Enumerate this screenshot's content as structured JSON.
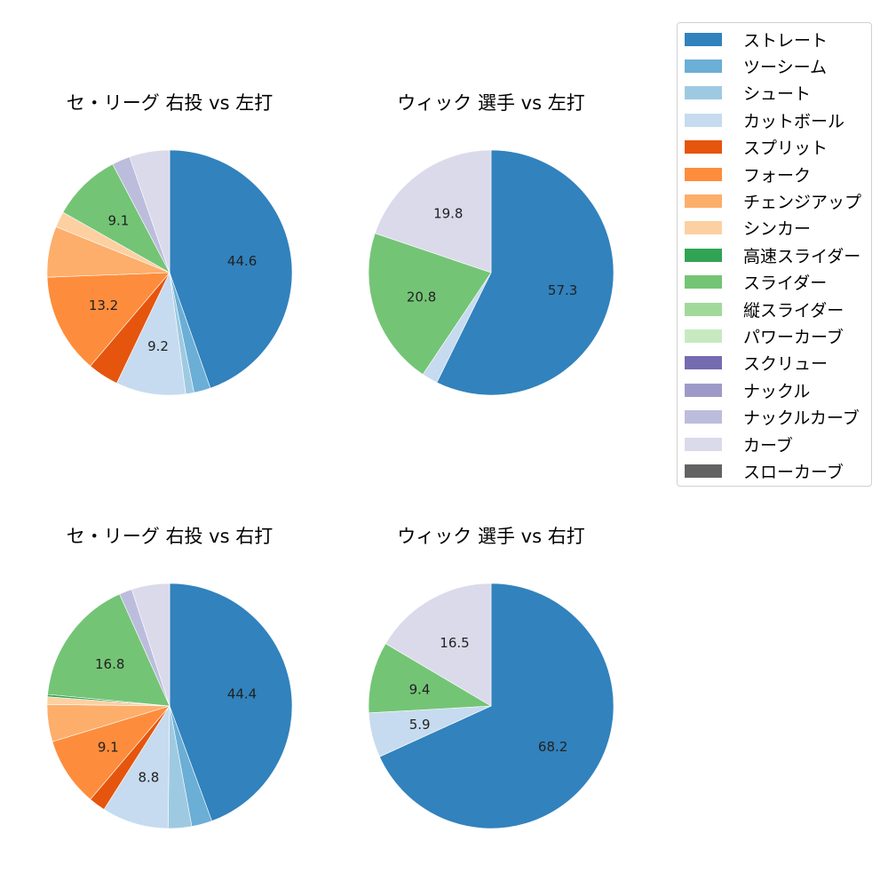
{
  "colors": {
    "ストレート": "#3182bd",
    "ツーシーム": "#6baed6",
    "シュート": "#9ecae1",
    "カットボール": "#c6dbef",
    "スプリット": "#e6550d",
    "フォーク": "#fd8d3c",
    "チェンジアップ": "#fdae6b",
    "シンカー": "#fdd0a2",
    "高速スライダー": "#31a354",
    "スライダー": "#74c476",
    "縦スライダー": "#a1d99b",
    "パワーカーブ": "#c7e9c0",
    "スクリュー": "#756bb1",
    "ナックル": "#9e9ac8",
    "ナックルカーブ": "#bcbddc",
    "カーブ": "#dadaeb",
    "スローカーブ": "#636363"
  },
  "legend": {
    "items": [
      {
        "label": "ストレート",
        "color": "#3182bd"
      },
      {
        "label": "ツーシーム",
        "color": "#6baed6"
      },
      {
        "label": "シュート",
        "color": "#9ecae1"
      },
      {
        "label": "カットボール",
        "color": "#c6dbef"
      },
      {
        "label": "スプリット",
        "color": "#e6550d"
      },
      {
        "label": "フォーク",
        "color": "#fd8d3c"
      },
      {
        "label": "チェンジアップ",
        "color": "#fdae6b"
      },
      {
        "label": "シンカー",
        "color": "#fdd0a2"
      },
      {
        "label": "高速スライダー",
        "color": "#31a354"
      },
      {
        "label": "スライダー",
        "color": "#74c476"
      },
      {
        "label": "縦スライダー",
        "color": "#a1d99b"
      },
      {
        "label": "パワーカーブ",
        "color": "#c7e9c0"
      },
      {
        "label": "スクリュー",
        "color": "#756bb1"
      },
      {
        "label": "ナックル",
        "color": "#9e9ac8"
      },
      {
        "label": "ナックルカーブ",
        "color": "#bcbddc"
      },
      {
        "label": "カーブ",
        "color": "#dadaeb"
      },
      {
        "label": "スローカーブ",
        "color": "#636363"
      }
    ]
  },
  "chart_data": [
    {
      "type": "pie",
      "title": "セ・リーグ 右投 vs 左打",
      "labels": [
        "ストレート",
        "ツーシーム",
        "シュート",
        "カットボール",
        "スプリット",
        "フォーク",
        "チェンジアップ",
        "シンカー",
        "スライダー",
        "ナックルカーブ",
        "カーブ"
      ],
      "values": [
        44.6,
        2.2,
        1.1,
        9.2,
        4.1,
        13.2,
        6.7,
        2.1,
        9.1,
        2.4,
        5.3
      ],
      "shown_labels": [
        "44.6",
        "",
        "",
        "9.2",
        "",
        "13.2",
        "",
        "",
        "9.1",
        "",
        ""
      ],
      "start_angle": 90,
      "direction": "clockwise"
    },
    {
      "type": "pie",
      "title": "ウィック 選手 vs 左打",
      "labels": [
        "ストレート",
        "カットボール",
        "スライダー",
        "カーブ"
      ],
      "values": [
        57.3,
        2.1,
        20.8,
        19.8
      ],
      "shown_labels": [
        "57.3",
        "",
        "20.8",
        "19.8"
      ],
      "start_angle": 90,
      "direction": "clockwise"
    },
    {
      "type": "pie",
      "title": "セ・リーグ 右投 vs 右打",
      "labels": [
        "ストレート",
        "ツーシーム",
        "シュート",
        "カットボール",
        "スプリット",
        "フォーク",
        "チェンジアップ",
        "シンカー",
        "高速スライダー",
        "スライダー",
        "ナックルカーブ",
        "カーブ"
      ],
      "values": [
        44.4,
        2.7,
        3.1,
        8.8,
        2.2,
        9.1,
        4.9,
        1.0,
        0.3,
        16.8,
        1.7,
        5.0
      ],
      "shown_labels": [
        "44.4",
        "",
        "",
        "8.8",
        "",
        "9.1",
        "",
        "",
        "",
        "16.8",
        "",
        ""
      ],
      "start_angle": 90,
      "direction": "clockwise"
    },
    {
      "type": "pie",
      "title": "ウィック 選手 vs 右打",
      "labels": [
        "ストレート",
        "カットボール",
        "スライダー",
        "カーブ"
      ],
      "values": [
        68.2,
        5.9,
        9.4,
        16.5
      ],
      "shown_labels": [
        "68.2",
        "5.9",
        "9.4",
        "16.5"
      ],
      "start_angle": 90,
      "direction": "clockwise"
    }
  ]
}
